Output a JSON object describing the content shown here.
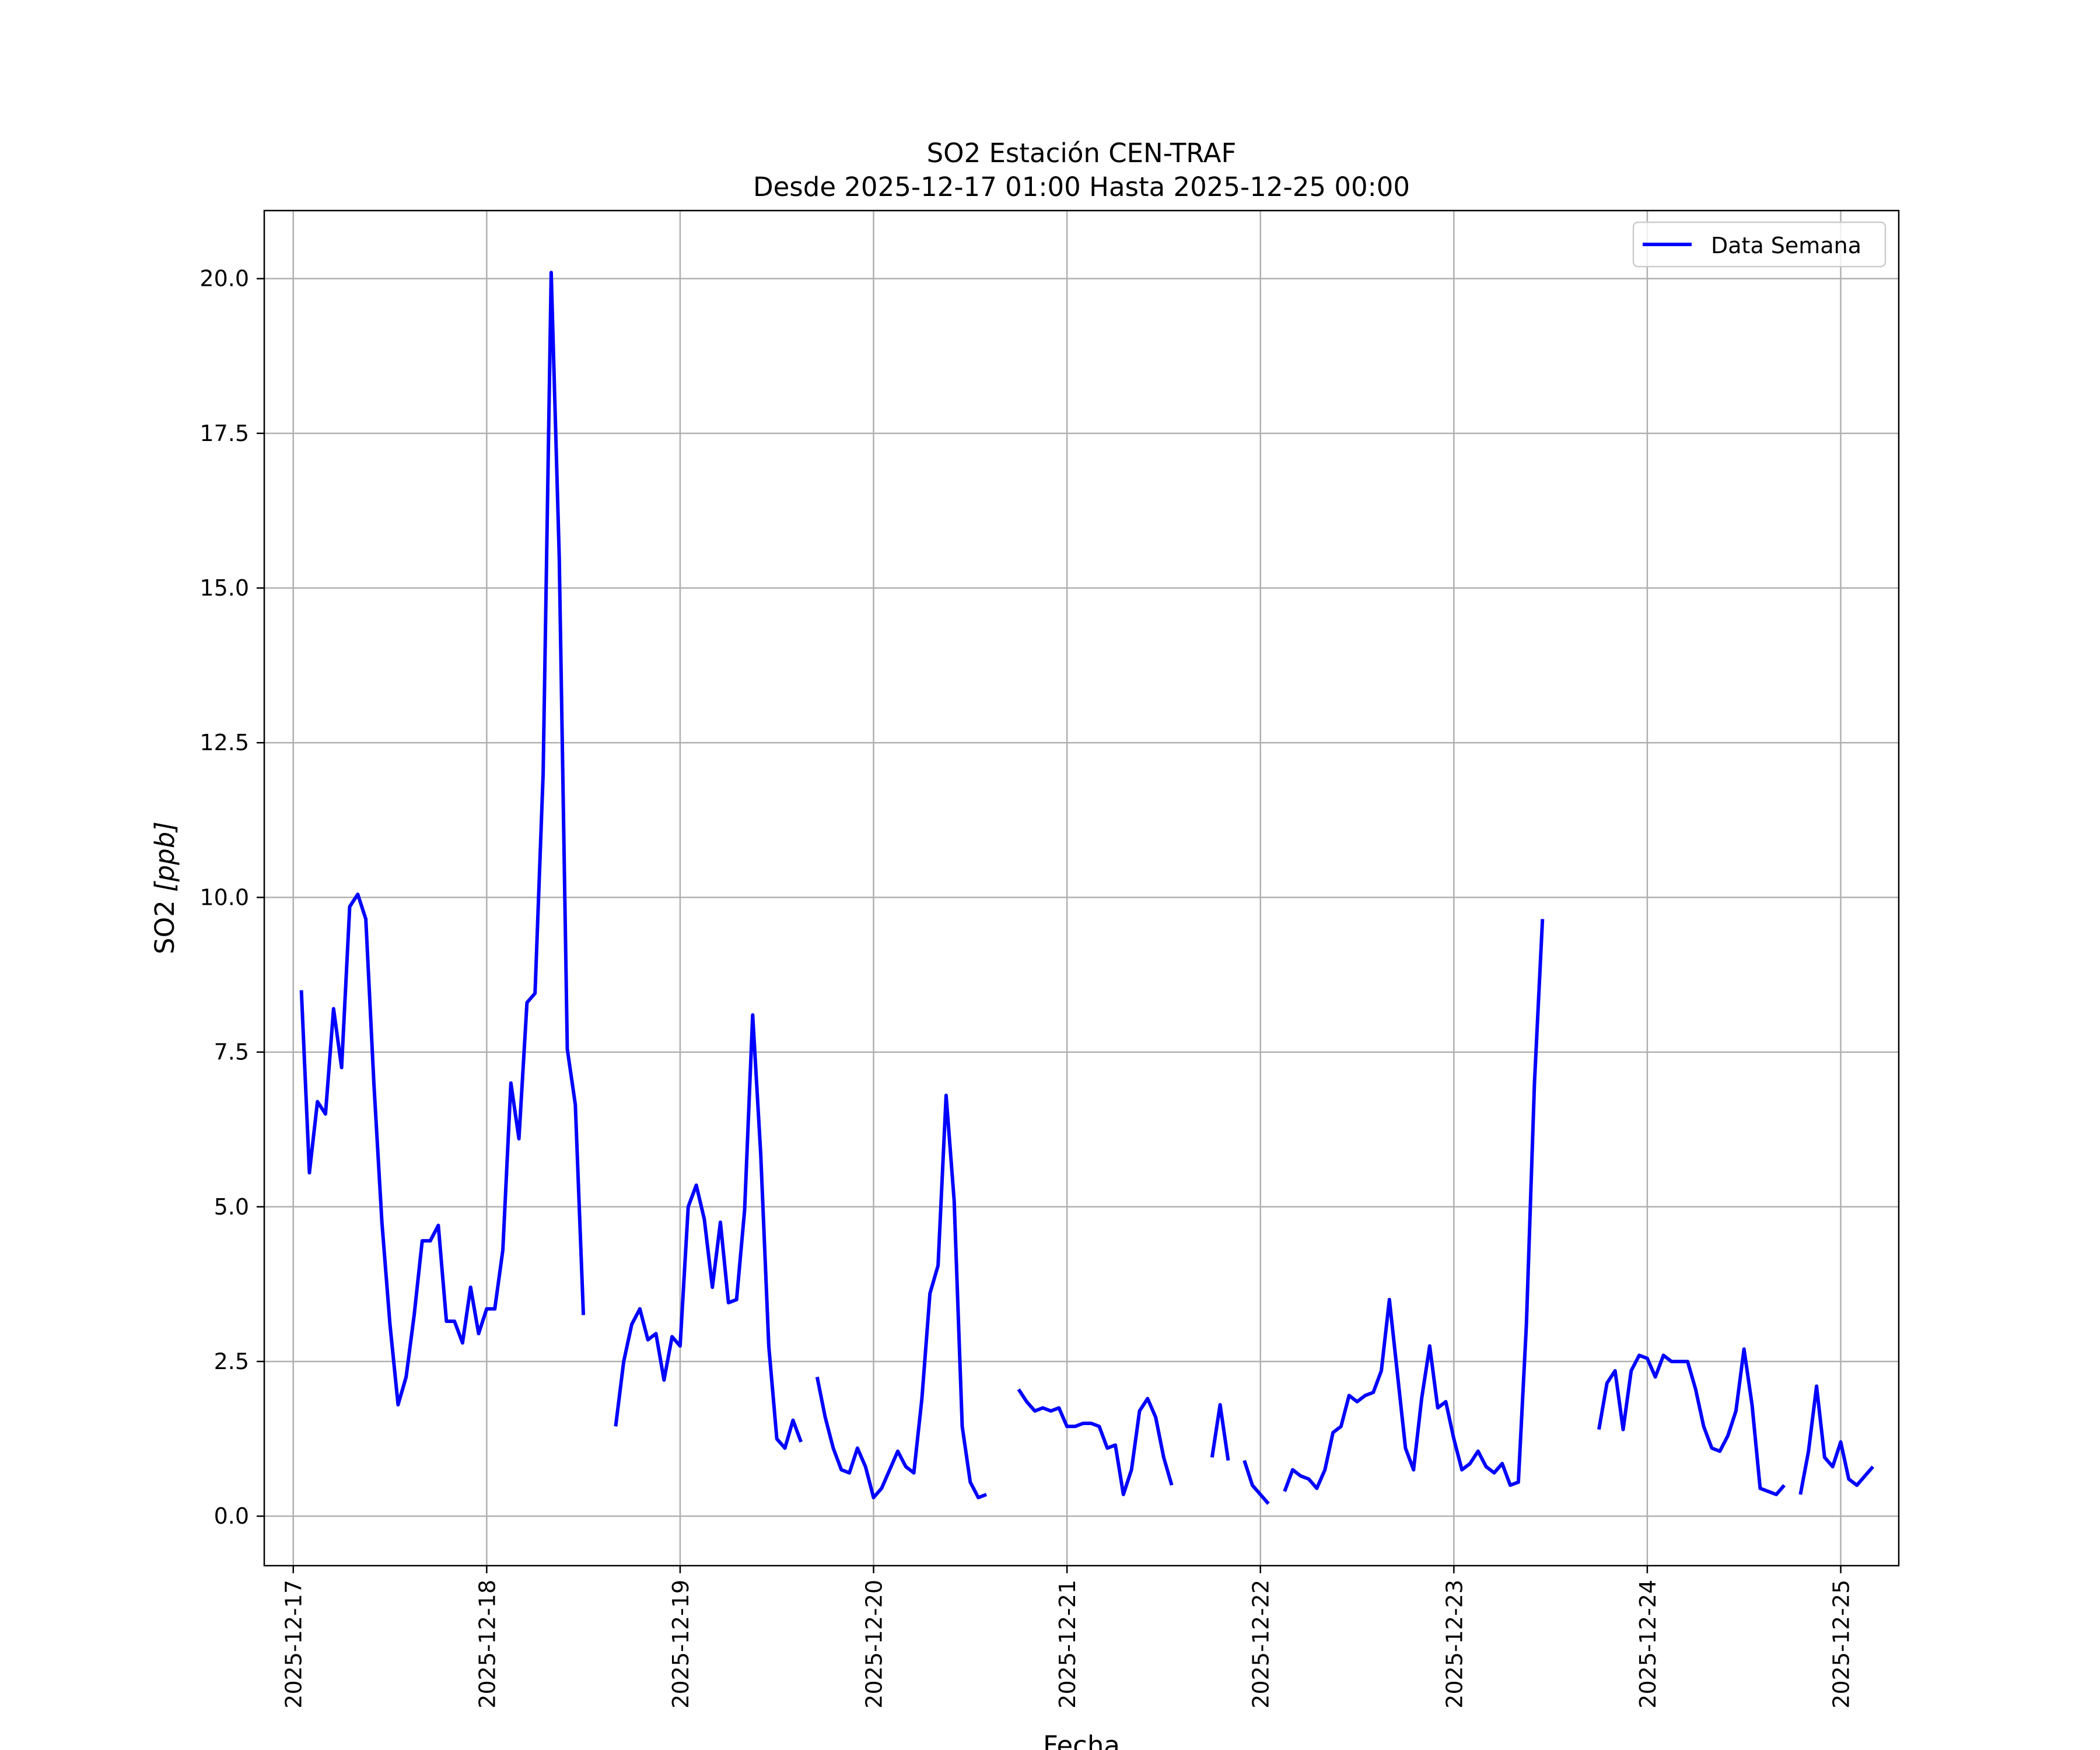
{
  "chart_data": {
    "type": "line",
    "title": "SO2 Estación CEN-TRAF",
    "subtitle": "Desde 2025-12-17 01:00 Hasta 2025-12-25 00:00",
    "xlabel": "Fecha",
    "ylabel_main": "SO2 ",
    "ylabel_unit": "[ppb]",
    "x_type": "datetime",
    "xlim": [
      "2025-12-16 20:24",
      "2025-12-25 07:12"
    ],
    "ylim": [
      -0.8,
      21.1
    ],
    "grid": true,
    "legend_position": "top-right",
    "x_ticks": [
      "2025-12-17",
      "2025-12-18",
      "2025-12-19",
      "2025-12-20",
      "2025-12-21",
      "2025-12-22",
      "2025-12-23",
      "2025-12-24",
      "2025-12-25"
    ],
    "y_ticks": [
      "0.0",
      "2.5",
      "5.0",
      "7.5",
      "10.0",
      "12.5",
      "15.0",
      "17.5",
      "20.0"
    ],
    "series": [
      {
        "name": "Data Semana",
        "color": "#0000ff",
        "start": "2025-12-17 01:00",
        "step_hours": 1,
        "values": [
          8.5,
          5.55,
          6.7,
          6.5,
          8.2,
          7.25,
          9.85,
          10.05,
          9.65,
          7.0,
          4.75,
          3.1,
          1.8,
          2.25,
          3.25,
          4.45,
          4.45,
          4.7,
          3.15,
          3.15,
          2.8,
          3.7,
          2.95,
          3.35,
          3.35,
          4.3,
          7.0,
          6.1,
          8.3,
          8.45,
          12.0,
          20.1,
          15.5,
          7.55,
          6.65,
          3.25,
          null,
          null,
          null,
          1.45,
          2.5,
          3.1,
          3.35,
          2.85,
          2.95,
          2.2,
          2.9,
          2.75,
          5.0,
          5.35,
          4.8,
          3.7,
          4.75,
          3.45,
          3.5,
          4.95,
          8.1,
          5.85,
          2.75,
          1.25,
          1.1,
          1.55,
          1.2,
          null,
          2.25,
          1.6,
          1.1,
          0.75,
          0.7,
          1.1,
          0.8,
          0.3,
          0.45,
          0.75,
          1.05,
          0.8,
          0.7,
          1.9,
          3.6,
          4.05,
          6.8,
          5.1,
          1.45,
          0.55,
          0.3,
          0.35,
          null,
          null,
          null,
          2.05,
          1.85,
          1.7,
          1.75,
          1.7,
          1.75,
          1.45,
          1.45,
          1.5,
          1.5,
          1.45,
          1.1,
          1.15,
          0.35,
          0.75,
          1.7,
          1.9,
          1.6,
          0.95,
          0.5,
          null,
          null,
          null,
          null,
          0.95,
          1.8,
          0.9,
          null,
          0.9,
          0.5,
          0.35,
          0.2,
          null,
          0.4,
          0.75,
          0.65,
          0.6,
          0.45,
          0.75,
          1.35,
          1.45,
          1.95,
          1.85,
          1.95,
          2.0,
          2.35,
          3.5,
          2.3,
          1.1,
          0.75,
          1.9,
          2.75,
          1.75,
          1.85,
          1.25,
          0.75,
          0.85,
          1.05,
          0.8,
          0.7,
          0.85,
          0.5,
          0.55,
          3.1,
          7.0,
          9.65,
          null,
          null,
          null,
          null,
          null,
          null,
          1.4,
          2.15,
          2.35,
          1.4,
          2.35,
          2.6,
          2.55,
          2.25,
          2.6,
          2.5,
          2.5,
          2.5,
          2.05,
          1.45,
          1.1,
          1.05,
          1.3,
          1.7,
          2.7,
          1.8,
          0.45,
          0.4,
          0.35,
          0.5,
          null,
          0.35,
          1.05,
          2.1,
          0.95,
          0.8,
          1.2,
          0.6,
          0.5,
          0.65,
          0.8
        ]
      }
    ]
  }
}
